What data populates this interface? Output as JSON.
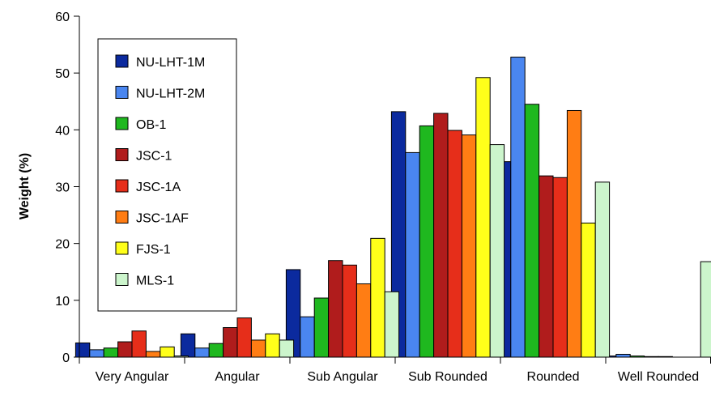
{
  "chart_data": {
    "type": "bar",
    "title": "",
    "xlabel": "",
    "ylabel": "Weight (%)",
    "ylim": [
      0,
      60
    ],
    "yticks": [
      0,
      10,
      20,
      30,
      40,
      50,
      60
    ],
    "grid": false,
    "legend_position": "top-left",
    "categories": [
      "Very Angular",
      "Angular",
      "Sub Angular",
      "Sub Rounded",
      "Rounded",
      "Well Rounded"
    ],
    "series": [
      {
        "name": "NU-LHT-1M",
        "color": "#0b2a9e",
        "values": [
          2.5,
          4.1,
          15.4,
          43.2,
          34.4,
          0.2
        ]
      },
      {
        "name": "NU-LHT-2M",
        "color": "#4a86f0",
        "values": [
          1.3,
          1.6,
          7.1,
          36.0,
          52.8,
          0.5
        ]
      },
      {
        "name": "OB-1",
        "color": "#1fb81f",
        "values": [
          1.6,
          2.4,
          10.4,
          40.7,
          44.5,
          0.2
        ]
      },
      {
        "name": "JSC-1",
        "color": "#b01c1c",
        "values": [
          2.7,
          5.2,
          17.0,
          42.9,
          31.9,
          0.1
        ]
      },
      {
        "name": "JSC-1A",
        "color": "#e62e1a",
        "values": [
          4.6,
          6.9,
          16.2,
          39.9,
          31.6,
          0.1
        ]
      },
      {
        "name": "JSC-1AF",
        "color": "#ff7d14",
        "values": [
          1.0,
          3.0,
          12.9,
          39.1,
          43.4,
          0.0
        ]
      },
      {
        "name": "FJS-1",
        "color": "#ffff1a",
        "values": [
          1.8,
          4.1,
          20.9,
          49.2,
          23.6,
          0.0
        ]
      },
      {
        "name": "MLS-1",
        "color": "#ccf5cc",
        "values": [
          0.2,
          3.0,
          11.5,
          37.4,
          30.8,
          16.8
        ]
      }
    ]
  }
}
